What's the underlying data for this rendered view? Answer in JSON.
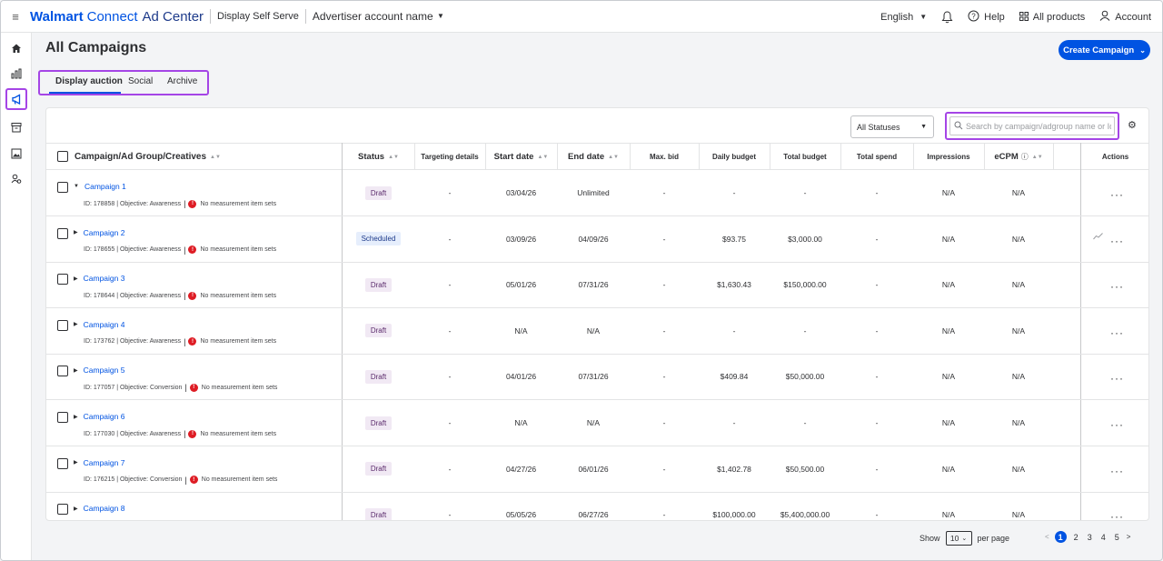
{
  "topbar": {
    "brand_bold": "Walmart",
    "brand_connect": "Connect",
    "brand_product": "Ad Center",
    "display_self_serve": "Display Self Serve",
    "account_name": "Advertiser account name",
    "language": "English",
    "help": "Help",
    "all_products": "All products",
    "account": "Account",
    "icons": [
      "menu-icon",
      "bell-icon",
      "help-icon",
      "grid-icon",
      "user-icon"
    ]
  },
  "page": {
    "title": "All Campaigns",
    "create_button": "Create Campaign"
  },
  "tabs": [
    "Display auction",
    "Social",
    "Archive"
  ],
  "filters": {
    "status_select": "All Statuses",
    "search_placeholder": "Search by campaign/adgroup name or Id"
  },
  "columns": {
    "campaign": "Campaign/Ad Group/Creatives",
    "status": "Status",
    "targeting": "Targeting details",
    "start": "Start date",
    "end": "End date",
    "max_bid": "Max. bid",
    "daily": "Daily budget",
    "total_budget": "Total budget",
    "total_spend": "Total spend",
    "impressions": "Impressions",
    "ecpm": "eCPM",
    "actions": "Actions"
  },
  "rows": [
    {
      "name": "Campaign 1",
      "meta": "ID: 178858 | Objective: Awareness",
      "warning": "No measurement item sets",
      "status": "Draft",
      "targeting": "-",
      "start": "03/04/26",
      "end": "Unlimited",
      "max_bid": "-",
      "daily": "-",
      "total_budget": "-",
      "total_spend": "-",
      "impressions": "N/A",
      "ecpm": "N/A",
      "expanded": "true"
    },
    {
      "name": "Campaign 2",
      "meta": "ID: 178655 | Objective: Awareness",
      "warning": "No measurement item sets",
      "status": "Scheduled",
      "targeting": "-",
      "start": "03/09/26",
      "end": "04/09/26",
      "max_bid": "-",
      "daily": "$93.75",
      "total_budget": "$3,000.00",
      "total_spend": "-",
      "impressions": "N/A",
      "ecpm": "N/A"
    },
    {
      "name": "Campaign 3",
      "meta": "ID: 178644 | Objective: Awareness",
      "warning": "No measurement item sets",
      "status": "Draft",
      "targeting": "-",
      "start": "05/01/26",
      "end": "07/31/26",
      "max_bid": "-",
      "daily": "$1,630.43",
      "total_budget": "$150,000.00",
      "total_spend": "-",
      "impressions": "N/A",
      "ecpm": "N/A"
    },
    {
      "name": "Campaign 4",
      "meta": "ID: 173762 | Objective: Awareness",
      "warning": "No measurement item sets",
      "status": "Draft",
      "targeting": "-",
      "start": "N/A",
      "end": "N/A",
      "max_bid": "-",
      "daily": "-",
      "total_budget": "-",
      "total_spend": "-",
      "impressions": "N/A",
      "ecpm": "N/A"
    },
    {
      "name": "Campaign 5",
      "meta": "ID: 177057 | Objective: Conversion",
      "warning": "No measurement item sets",
      "status": "Draft",
      "targeting": "-",
      "start": "04/01/26",
      "end": "07/31/26",
      "max_bid": "-",
      "daily": "$409.84",
      "total_budget": "$50,000.00",
      "total_spend": "-",
      "impressions": "N/A",
      "ecpm": "N/A"
    },
    {
      "name": "Campaign 6",
      "meta": "ID: 177030 | Objective: Awareness",
      "warning": "No measurement item sets",
      "status": "Draft",
      "targeting": "-",
      "start": "N/A",
      "end": "N/A",
      "max_bid": "-",
      "daily": "-",
      "total_budget": "-",
      "total_spend": "-",
      "impressions": "N/A",
      "ecpm": "N/A"
    },
    {
      "name": "Campaign 7",
      "meta": "ID: 176215 | Objective: Conversion",
      "warning": "No measurement item sets",
      "status": "Draft",
      "targeting": "-",
      "start": "04/27/26",
      "end": "06/01/26",
      "max_bid": "-",
      "daily": "$1,402.78",
      "total_budget": "$50,500.00",
      "total_spend": "-",
      "impressions": "N/A",
      "ecpm": "N/A"
    },
    {
      "name": "Campaign 8",
      "meta": "",
      "warning": "",
      "status": "Draft",
      "targeting": "-",
      "start": "05/05/26",
      "end": "06/27/26",
      "max_bid": "-",
      "daily": "$100,000.00",
      "total_budget": "$5,400,000.00",
      "total_spend": "-",
      "impressions": "N/A",
      "ecpm": "N/A"
    }
  ],
  "pagination": {
    "show": "Show",
    "per_page_value": "10",
    "per_page": "per page",
    "pages": [
      "1",
      "2",
      "3",
      "4",
      "5"
    ],
    "current": "1",
    "prev": "<",
    "next": ">"
  },
  "colors": {
    "accent": "#0053e2",
    "highlight": "#a545e6",
    "draft_bg": "#f1e9f4",
    "scheduled_bg": "#e6eefc",
    "warning": "#de1c24"
  }
}
